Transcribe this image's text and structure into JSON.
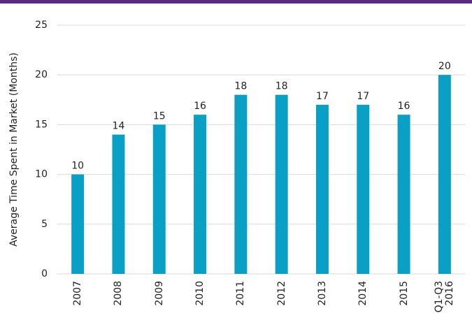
{
  "chart_data": {
    "type": "bar",
    "y_label": "Average Time Spent in Market (Months)",
    "categories": [
      "2007",
      "2008",
      "2009",
      "2010",
      "2011",
      "2012",
      "2013",
      "2014",
      "2015",
      "Q1-Q3 2016"
    ],
    "values": [
      10,
      14,
      15,
      16,
      18,
      18,
      17,
      17,
      16,
      20
    ],
    "color": "#0aa0c6",
    "ylim": [
      0,
      25
    ],
    "yticks": [
      0,
      5,
      10,
      15,
      20,
      25
    ],
    "grid": true
  }
}
